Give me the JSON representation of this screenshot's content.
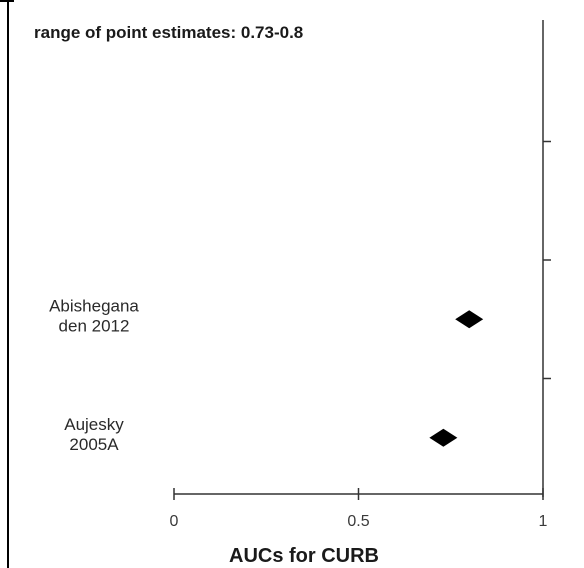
{
  "chart_data": {
    "type": "scatter",
    "annotation": "range of point estimates: 0.73-0.8",
    "xlabel": "AUCs for CURB",
    "xlim": [
      0,
      1
    ],
    "x_ticks": [
      {
        "value": 0,
        "label": "0"
      },
      {
        "value": 0.5,
        "label": "0.5"
      },
      {
        "value": 1,
        "label": "1"
      }
    ],
    "studies": [
      {
        "label_lines": [
          "Abishegana",
          "den 2012"
        ],
        "value": 0.8,
        "ci": [
          0.8,
          0.8
        ]
      },
      {
        "label_lines": [
          "Aujesky",
          "2005A"
        ],
        "value": 0.73,
        "ci": [
          0.71,
          0.75
        ]
      }
    ],
    "marker_color": "#000000"
  }
}
